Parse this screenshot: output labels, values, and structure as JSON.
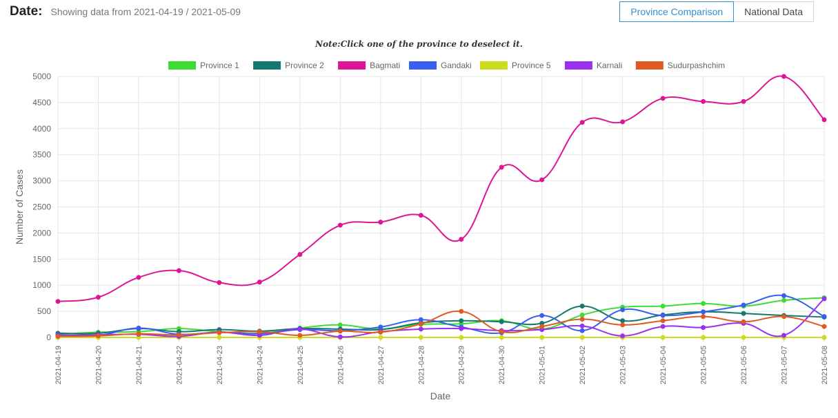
{
  "header": {
    "date_label": "Date:",
    "date_range": "Showing data from 2021-04-19 / 2021-05-09"
  },
  "toggle": {
    "province_comparison": "Province Comparison",
    "national_data": "National Data"
  },
  "note": "Note:Click one of the province to deselect it.",
  "colors": {
    "Province 1": "#3ddc33",
    "Province 2": "#14786e",
    "Bagmati": "#dd1494",
    "Gandaki": "#3a5ef0",
    "Province 5": "#cddc1c",
    "Karnali": "#9a2ff0",
    "Sudurpashchim": "#e05a24",
    "grid": "#e5e5e5"
  },
  "chart_data": {
    "type": "line",
    "title": "",
    "xlabel": "Date",
    "ylabel": "Number of Cases",
    "ylim": [
      0,
      5000
    ],
    "yticks": [
      0,
      500,
      1000,
      1500,
      2000,
      2500,
      3000,
      3500,
      4000,
      4500,
      5000
    ],
    "grid": true,
    "legend": "top-center",
    "categories": [
      "2021-04-19",
      "2021-04-20",
      "2021-04-21",
      "2021-04-22",
      "2021-04-23",
      "2021-04-24",
      "2021-04-25",
      "2021-04-26",
      "2021-04-27",
      "2021-04-28",
      "2021-04-29",
      "2021-04-30",
      "2021-05-01",
      "2021-05-02",
      "2021-05-03",
      "2021-05-04",
      "2021-05-05",
      "2021-05-06",
      "2021-05-07",
      "2021-05-08"
    ],
    "series": [
      {
        "name": "Province 1",
        "color": "#3ddc33",
        "values": [
          60,
          100,
          110,
          170,
          110,
          80,
          180,
          240,
          160,
          250,
          260,
          320,
          160,
          430,
          580,
          600,
          650,
          600,
          710,
          760
        ]
      },
      {
        "name": "Province 2",
        "color": "#14786e",
        "values": [
          80,
          80,
          170,
          110,
          150,
          120,
          170,
          160,
          150,
          280,
          320,
          300,
          270,
          600,
          320,
          430,
          490,
          460,
          420,
          390
        ]
      },
      {
        "name": "Bagmati",
        "color": "#dd1494",
        "values": [
          690,
          770,
          1150,
          1280,
          1050,
          1060,
          1590,
          2150,
          2210,
          2340,
          1880,
          3260,
          3020,
          4120,
          4130,
          4580,
          4520,
          4520,
          5000,
          4170
        ]
      },
      {
        "name": "Gandaki",
        "color": "#3a5ef0",
        "values": [
          50,
          40,
          180,
          60,
          100,
          70,
          150,
          130,
          200,
          340,
          200,
          90,
          420,
          130,
          530,
          420,
          490,
          620,
          800,
          400
        ]
      },
      {
        "name": "Province 5",
        "color": "#cddc1c",
        "values": [
          0,
          0,
          0,
          0,
          0,
          0,
          0,
          0,
          0,
          0,
          0,
          0,
          0,
          0,
          0,
          0,
          0,
          0,
          0,
          0
        ]
      },
      {
        "name": "Karnali",
        "color": "#9a2ff0",
        "values": [
          40,
          50,
          60,
          20,
          100,
          40,
          160,
          10,
          110,
          160,
          170,
          130,
          150,
          220,
          30,
          210,
          190,
          270,
          40,
          740
        ]
      },
      {
        "name": "Sudurpashchim",
        "color": "#e05a24",
        "values": [
          20,
          30,
          70,
          50,
          90,
          110,
          40,
          120,
          100,
          260,
          500,
          110,
          210,
          350,
          240,
          320,
          400,
          300,
          400,
          210
        ]
      }
    ]
  }
}
